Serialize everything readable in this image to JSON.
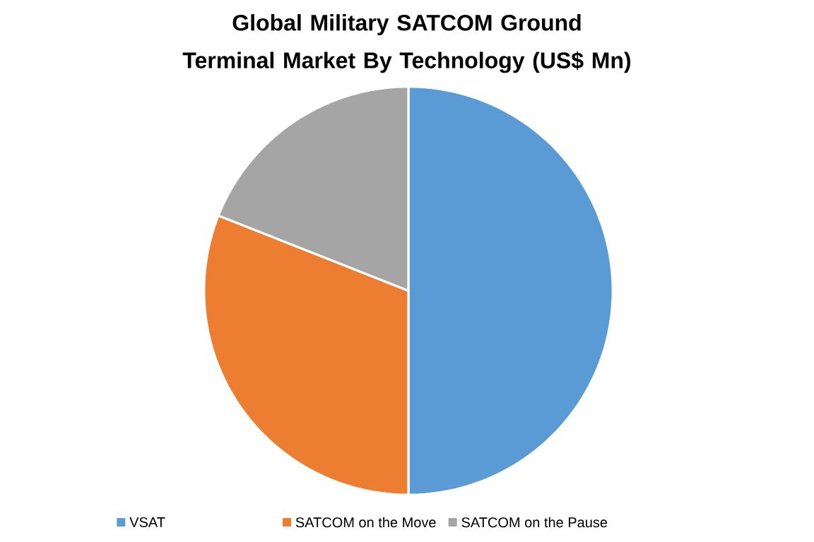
{
  "chart_data": {
    "type": "pie",
    "title": "Global Military SATCOM Ground Terminal Market By Technology (US$ Mn)",
    "categories": [
      "VSAT",
      "SATCOM on the Move",
      "SATCOM on the Pause"
    ],
    "values": [
      50,
      31,
      19
    ],
    "colors": [
      "#5b9bd5",
      "#ed7d31",
      "#a5a5a5"
    ],
    "legend": "bottom"
  }
}
